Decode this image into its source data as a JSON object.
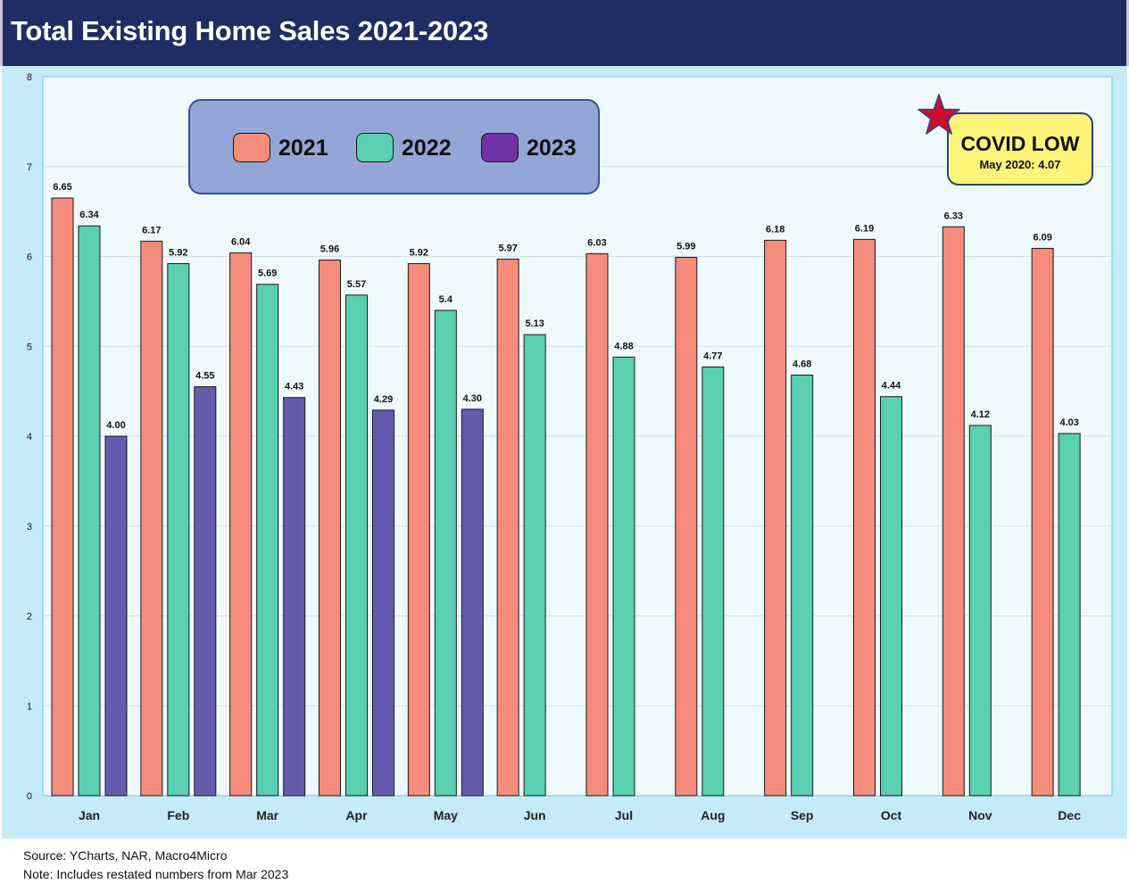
{
  "title": "Total Existing Home Sales 2021-2023",
  "colors": {
    "2021": "#f68c7c",
    "2022": "#5acfb1",
    "2023": "#665cae",
    "legend_2023": "#7132a5",
    "header": "#1f2d64",
    "panel": "#c5ebf8",
    "plot": "#eefafd"
  },
  "legend": [
    {
      "label": "2021"
    },
    {
      "label": "2022"
    },
    {
      "label": "2023"
    }
  ],
  "annotation": {
    "icon": "star-icon",
    "title": "COVID LOW",
    "subtitle": "May 2020: 4.07"
  },
  "footer": {
    "source": "Source: YCharts, NAR, Macro4Micro",
    "note": "Note: Includes restated numbers from Mar 2023"
  },
  "chart_data": {
    "type": "bar",
    "categories": [
      "Jan",
      "Feb",
      "Mar",
      "Apr",
      "May",
      "Jun",
      "Jul",
      "Aug",
      "Sep",
      "Oct",
      "Nov",
      "Dec"
    ],
    "series": [
      {
        "name": "2021",
        "values": [
          6.65,
          6.17,
          6.04,
          5.96,
          5.92,
          5.97,
          6.03,
          5.99,
          6.18,
          6.19,
          6.33,
          6.09
        ],
        "labels": [
          "6.65",
          "6.17",
          "6.04",
          "5.96",
          "5.92",
          "5.97",
          "6.03",
          "5.99",
          "6.18",
          "6.19",
          "6.33",
          "6.09"
        ]
      },
      {
        "name": "2022",
        "values": [
          6.34,
          5.92,
          5.69,
          5.57,
          5.4,
          5.13,
          4.88,
          4.77,
          4.68,
          4.44,
          4.12,
          4.03
        ],
        "labels": [
          "6.34",
          "5.92",
          "5.69",
          "5.57",
          "5.4",
          "5.13",
          "4.88",
          "4.77",
          "4.68",
          "4.44",
          "4.12",
          "4.03"
        ]
      },
      {
        "name": "2023",
        "values": [
          4.0,
          4.55,
          4.43,
          4.29,
          4.3,
          null,
          null,
          null,
          null,
          null,
          null,
          null
        ],
        "labels": [
          "4.00",
          "4.55",
          "4.43",
          "4.29",
          "4.30",
          "",
          "",
          "",
          "",
          "",
          "",
          ""
        ]
      }
    ],
    "yticks": [
      "0",
      "1",
      "2",
      "3",
      "4",
      "5",
      "6",
      "7",
      "8"
    ],
    "ylim": [
      0,
      8
    ],
    "grid": true,
    "legend_position": "top-left"
  }
}
